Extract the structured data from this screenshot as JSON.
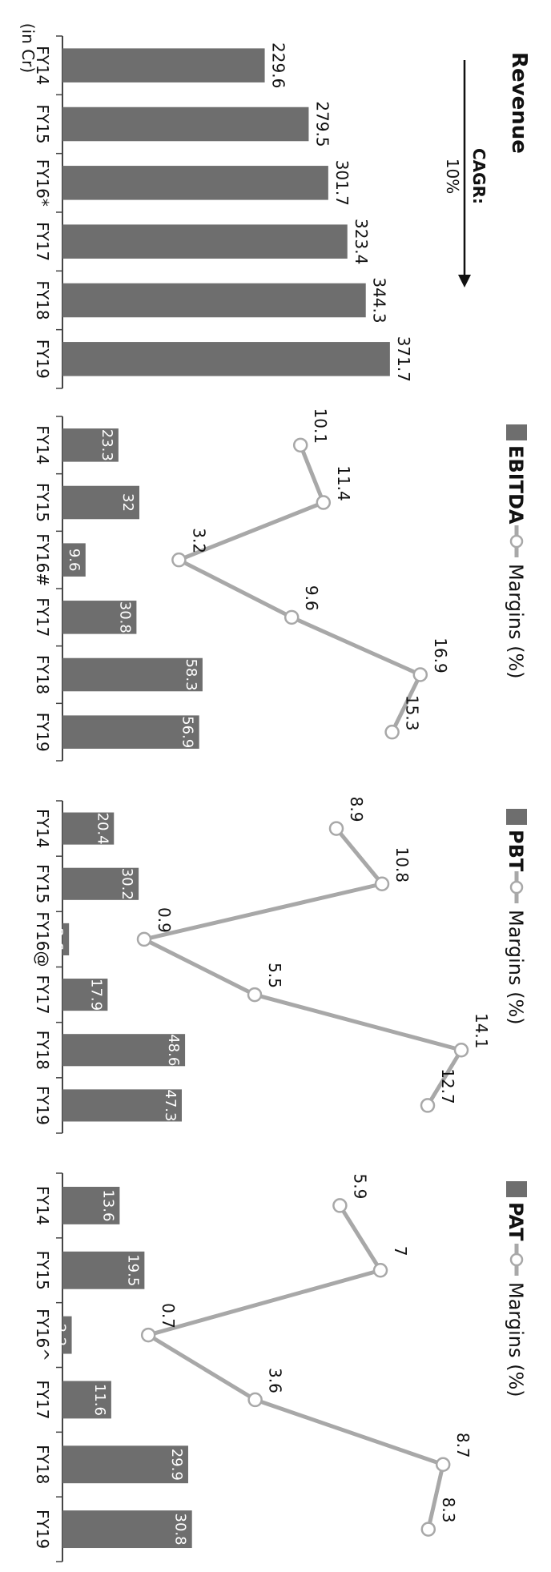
{
  "unit_label": "(in Cr)",
  "colors": {
    "bar": "#6e6e6e",
    "line": "#a8a8a8",
    "text": "#111111",
    "axis": "#444444"
  },
  "chart_data": [
    {
      "type": "bar",
      "title": "Revenue",
      "categories": [
        "FY14",
        "FY15",
        "FY16*",
        "FY17",
        "FY18",
        "FY19"
      ],
      "values": [
        229.6,
        279.5,
        301.7,
        323.4,
        344.3,
        371.7
      ],
      "cagr_label": "CAGR:",
      "cagr_value": "10%",
      "ylim": [
        0,
        400
      ]
    },
    {
      "type": "bar",
      "categories": [
        "FY14",
        "FY15",
        "FY16#",
        "FY17",
        "FY18",
        "FY19"
      ],
      "legend": {
        "bar": "EBITDA",
        "line": "Margins (%)"
      },
      "series": [
        {
          "name": "EBITDA",
          "values": [
            23.3,
            32,
            9.6,
            30.8,
            58.3,
            56.9
          ]
        },
        {
          "name": "Margins (%)",
          "type": "line",
          "values": [
            10.1,
            11.4,
            3.2,
            9.6,
            16.9,
            15.3
          ]
        }
      ],
      "ylim": [
        0,
        60
      ],
      "y2lim": [
        0,
        20
      ]
    },
    {
      "type": "bar",
      "categories": [
        "FY14",
        "FY15",
        "FY16@",
        "FY17",
        "FY18",
        "FY19"
      ],
      "legend": {
        "bar": "PBT",
        "line": "Margins (%)"
      },
      "series": [
        {
          "name": "PBT",
          "values": [
            20.4,
            30.2,
            2.6,
            17.9,
            48.6,
            47.3
          ]
        },
        {
          "name": "Margins (%)",
          "type": "line",
          "values": [
            8.9,
            10.8,
            0.9,
            5.5,
            14.1,
            12.7
          ]
        }
      ],
      "ylim": [
        0,
        50
      ],
      "y2lim": [
        0,
        16
      ]
    },
    {
      "type": "bar",
      "categories": [
        "FY14",
        "FY15",
        "FY16^",
        "FY17",
        "FY18",
        "FY19"
      ],
      "legend": {
        "bar": "PAT",
        "line": "Margins (%)"
      },
      "series": [
        {
          "name": "PAT",
          "values": [
            13.6,
            19.5,
            2.2,
            11.6,
            29.9,
            30.8
          ]
        },
        {
          "name": "Margins (%)",
          "type": "line",
          "values": [
            5.9,
            7,
            0.7,
            3.6,
            8.7,
            8.3
          ]
        }
      ],
      "ylim": [
        0,
        32
      ],
      "y2lim": [
        0,
        10
      ]
    }
  ]
}
